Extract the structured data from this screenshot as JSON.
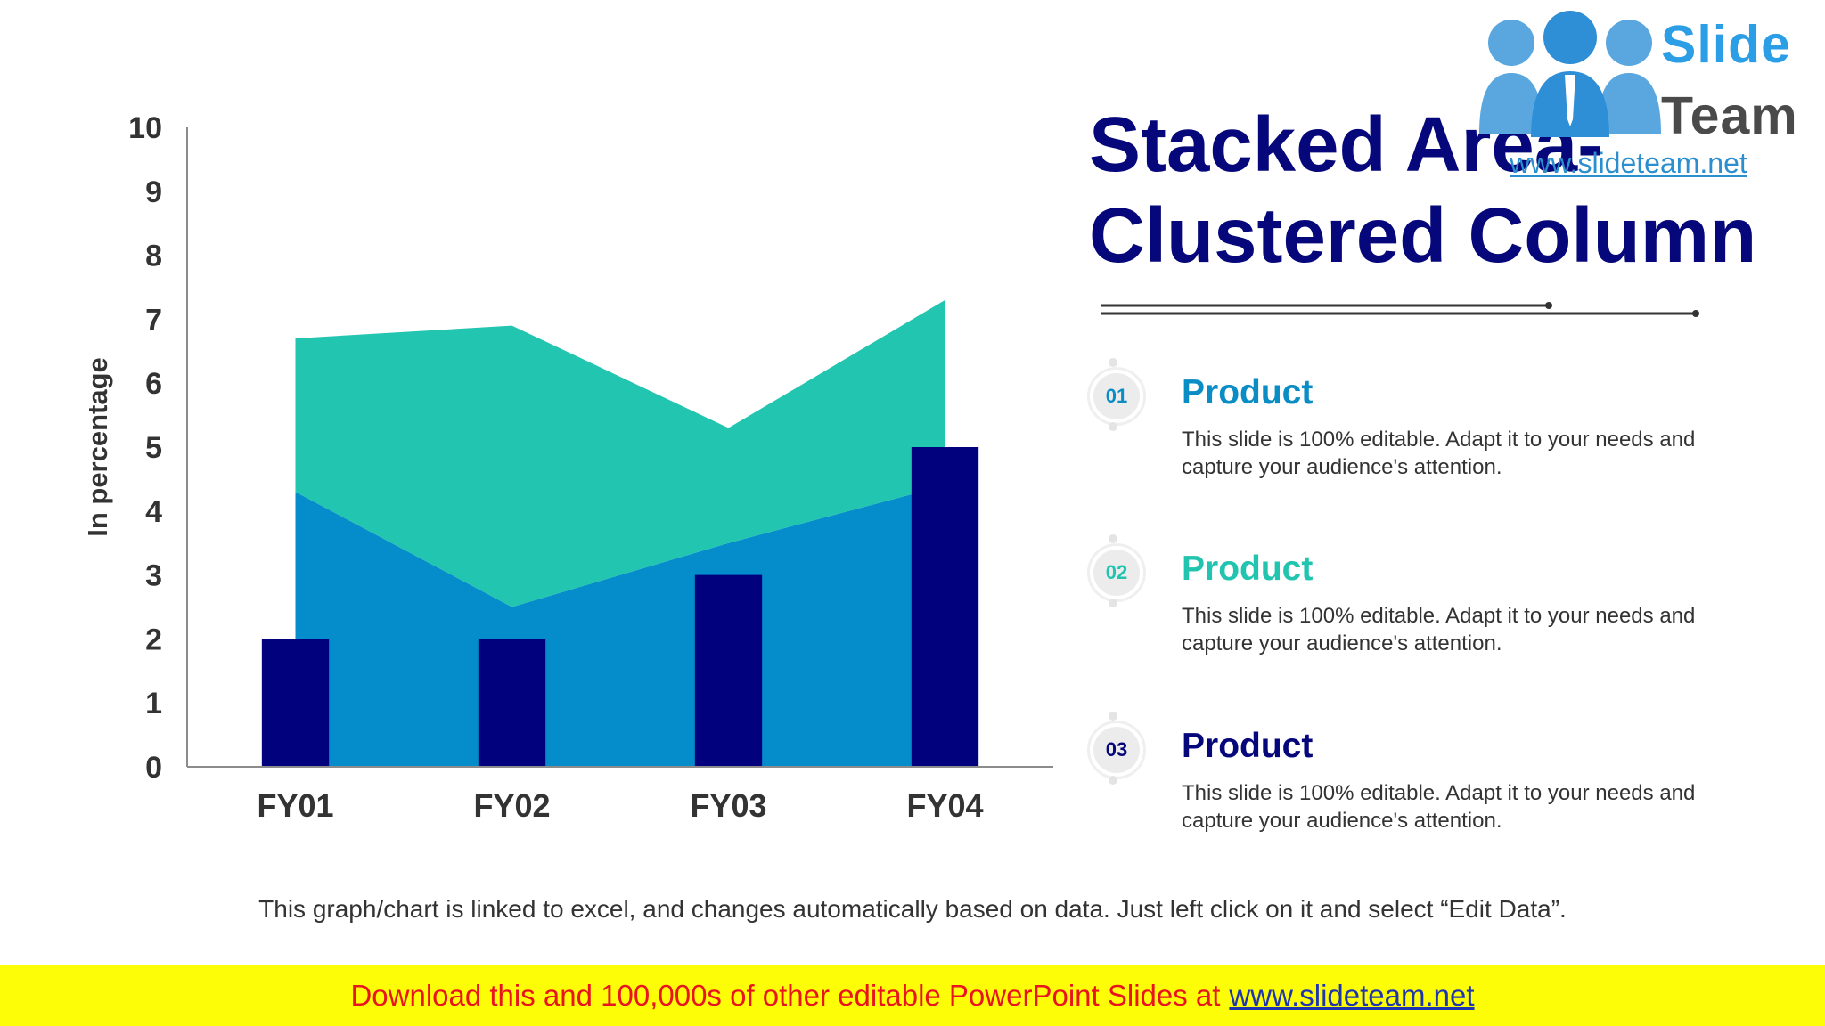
{
  "slide": {
    "title": "Stacked Area- Clustered Column",
    "footnote": "This graph/chart is linked to excel, and changes automatically based on data. Just left click on it and select “Edit Data”.",
    "banner": {
      "text": "Download this and 100,000s of other editable PowerPoint Slides at",
      "link": "www.slideteam.net"
    },
    "logo": {
      "line1": "Slide",
      "line2": "Team",
      "url": "www.slideteam.net"
    }
  },
  "items": [
    {
      "number": "01",
      "heading": "Product",
      "color": "#0a8cc4",
      "text": "This slide is 100% editable. Adapt it to your needs and capture your audience's attention."
    },
    {
      "number": "02",
      "heading": "Product",
      "color": "#21c4ae",
      "text": "This slide is 100% editable. Adapt it to your needs and capture your audience's attention."
    },
    {
      "number": "03",
      "heading": "Product",
      "color": "#05077a",
      "text": "This slide is 100% editable. Adapt it to your needs and capture your audience's attention."
    }
  ],
  "chart_data": {
    "type": "bar",
    "categories": [
      "FY01",
      "FY02",
      "FY03",
      "FY04"
    ],
    "ylabel": "In percentage",
    "xlabel": "",
    "ylim": [
      0,
      10
    ],
    "yticks": [
      0,
      1,
      2,
      3,
      4,
      5,
      6,
      7,
      8,
      9,
      10
    ],
    "grid": false,
    "legend": "none",
    "areas": [
      {
        "values": [
          4.3,
          2.5,
          3.5,
          4.4
        ],
        "color": "#048ccb"
      },
      {
        "values": [
          2.4,
          4.4,
          1.8,
          2.9
        ],
        "color": "#21c5b0"
      }
    ],
    "columns": {
      "values": [
        2,
        2,
        3,
        5
      ],
      "color": "#01017e"
    }
  }
}
